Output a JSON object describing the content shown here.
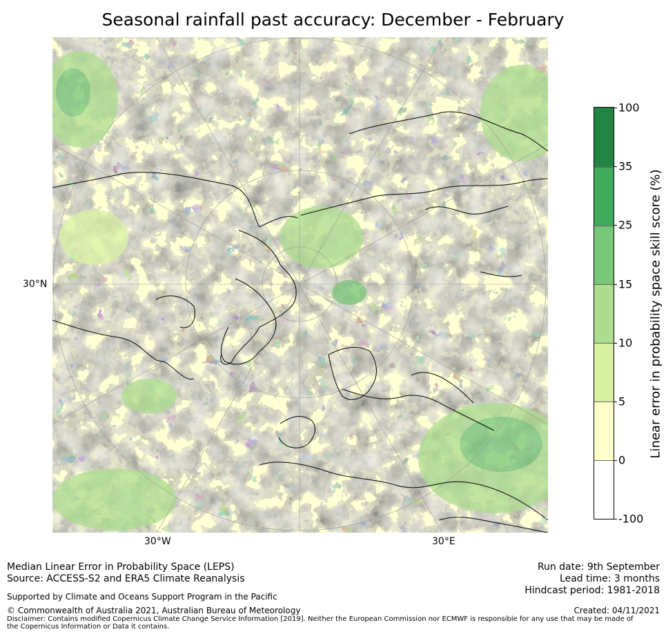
{
  "title": "Seasonal rainfall past accuracy: December - February",
  "map": {
    "projection": "north polar stereographic",
    "lat_labels": [
      "30°N"
    ],
    "lon_labels": [
      "30°W",
      "30°E"
    ],
    "land_outline_color": "#000000",
    "graticule_color": "#999999"
  },
  "colorbar": {
    "label": "Linear error in probability space skill score (%)",
    "ticks": [
      "100",
      "35",
      "25",
      "15",
      "10",
      "5",
      "0",
      "-100"
    ],
    "bins": [
      {
        "range": "25-35",
        "color": "#41ab5d"
      },
      {
        "range": "35-100",
        "color": "#238443"
      },
      {
        "range": "15-25",
        "color": "#78c679"
      },
      {
        "range": "10-15",
        "color": "#addd8e"
      },
      {
        "range": "5-10",
        "color": "#d9f0a3"
      },
      {
        "range": "0-5",
        "color": "#ffffcc"
      },
      {
        "range": "-100-0",
        "color": "#ffffff"
      }
    ]
  },
  "footer": {
    "line1": "Median Linear Error in Probability Space (LEPS)",
    "line2": "Source: ACCESS-S2 and ERA5 Climate Reanalysis",
    "support": "Supported by Climate and Oceans Support Program in the Pacific",
    "copyright": "© Commonwealth of Australia 2021, Australian Bureau of Meteorology",
    "disclaimer": "Disclaimer: Contains modified Copernicus Climate Change Service Information [2019]. Neither the European Commission nor ECMWF is responsible for any use that may be made of the Copernicus Information or Data it contains.",
    "run_date": "Run date: 9th September",
    "lead_time": "Lead time: 3 months",
    "hindcast": "Hindcast period: 1981-2018",
    "created": "Created: 04/11/2021"
  }
}
